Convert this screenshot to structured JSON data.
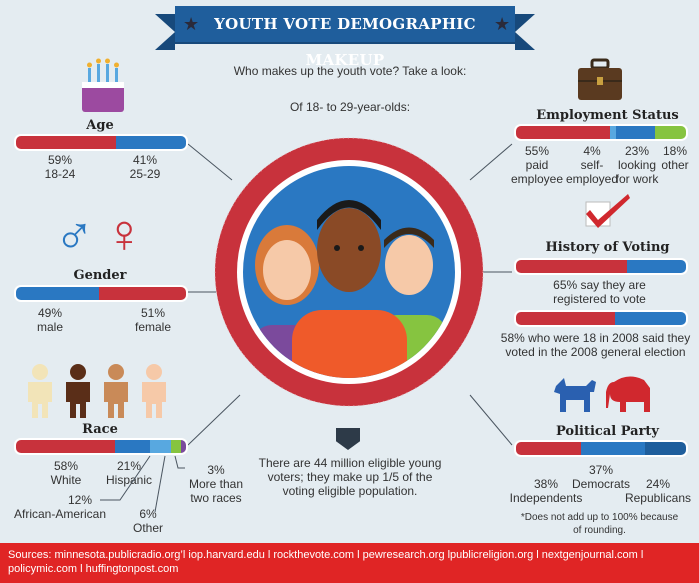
{
  "header": {
    "title": "YOUTH VOTE DEMOGRAPHIC MAKEUP",
    "subtitle": "Who makes up the youth vote? Take a look:",
    "sub2": "Of 18- to 29-year-olds:"
  },
  "colors": {
    "red": "#c8323c",
    "blue": "#2a78c2",
    "lightblue": "#58a8e0",
    "green": "#86c440",
    "purple": "#7b4a9c",
    "dark": "#1f5e9c"
  },
  "chart_data": [
    {
      "type": "bar",
      "title": "Age",
      "series": [
        {
          "name": "18-24",
          "value": 59,
          "label": "59%"
        },
        {
          "name": "25-29",
          "value": 41,
          "label": "41%"
        }
      ]
    },
    {
      "type": "bar",
      "title": "Gender",
      "series": [
        {
          "name": "male",
          "value": 49,
          "label": "49%"
        },
        {
          "name": "female",
          "value": 51,
          "label": "51%"
        }
      ]
    },
    {
      "type": "bar",
      "title": "Race",
      "series": [
        {
          "name": "White",
          "value": 58,
          "label": "58%"
        },
        {
          "name": "Hispanic",
          "value": 21,
          "label": "21%"
        },
        {
          "name": "African-American",
          "value": 12,
          "label": "12%"
        },
        {
          "name": "Other",
          "value": 6,
          "label": "6%"
        },
        {
          "name": "More than two races",
          "value": 3,
          "label": "3%"
        }
      ]
    },
    {
      "type": "bar",
      "title": "Employment Status",
      "series": [
        {
          "name": "paid employee",
          "value": 55,
          "label": "55%"
        },
        {
          "name": "self-employed",
          "value": 4,
          "label": "4%"
        },
        {
          "name": "looking for work",
          "value": 23,
          "label": "23%"
        },
        {
          "name": "other",
          "value": 18,
          "label": "18%"
        }
      ]
    },
    {
      "type": "bar",
      "title": "History of Voting",
      "series": [
        {
          "name": "say they are registered to vote",
          "value": 65,
          "label": "65%"
        },
        {
          "name": "who were 18 in 2008 said they voted in the 2008 general election",
          "value": 58,
          "label": "58%"
        }
      ]
    },
    {
      "type": "bar",
      "title": "Political Party",
      "series": [
        {
          "name": "Independents",
          "value": 38,
          "label": "38%"
        },
        {
          "name": "Democrats",
          "value": 37,
          "label": "37%"
        },
        {
          "name": "Republicans",
          "value": 24,
          "label": "24%"
        }
      ]
    }
  ],
  "labels": {
    "age": {
      "l1": "59%",
      "l1b": "18-24",
      "l2": "41%",
      "l2b": "25-29"
    },
    "gender": {
      "l1": "49%",
      "l1b": "male",
      "l2": "51%",
      "l2b": "female"
    },
    "race": {
      "white": "58%",
      "white_b": "White",
      "hisp": "21%",
      "hisp_b": "Hispanic",
      "aa": "12%",
      "aa_b": "African-American",
      "other": "6%",
      "other_b": "Other",
      "more": "3%",
      "more_b1": "More than",
      "more_b2": "two races"
    },
    "emp": {
      "paid": "55%",
      "paid_b1": "paid",
      "paid_b2": "employee",
      "self": "4%",
      "self_b1": "self-",
      "self_b2": "employed",
      "look": "23%",
      "look_b1": "looking",
      "look_b2": "for work",
      "oth": "18%",
      "oth_b": "other"
    },
    "hist": {
      "t1a": "65% say they are",
      "t1b": "registered to vote",
      "t2a": "58% who were 18 in 2008 said they",
      "t2b": "voted in the 2008 general election"
    },
    "party": {
      "dem": "37%",
      "dem_b": "Democrats",
      "ind": "38%",
      "ind_b": "Independents",
      "rep": "24%",
      "rep_b": "Republicans",
      "note1": "*Does not add up to 100% because",
      "note2": "of rounding."
    },
    "center": {
      "l1": "There are 44 million eligible young",
      "l2": "voters; they make up 1/5 of the",
      "l3": "voting eligible population."
    }
  },
  "footer": {
    "line1": "Sources: minnesota.publicradio.org’l iop.harvard.edu l rockthevote.com l pewresearch.org lpublicreligion.org l nextgenjournal.com l",
    "line2": "policymic.com l huffingtonpost.com"
  }
}
